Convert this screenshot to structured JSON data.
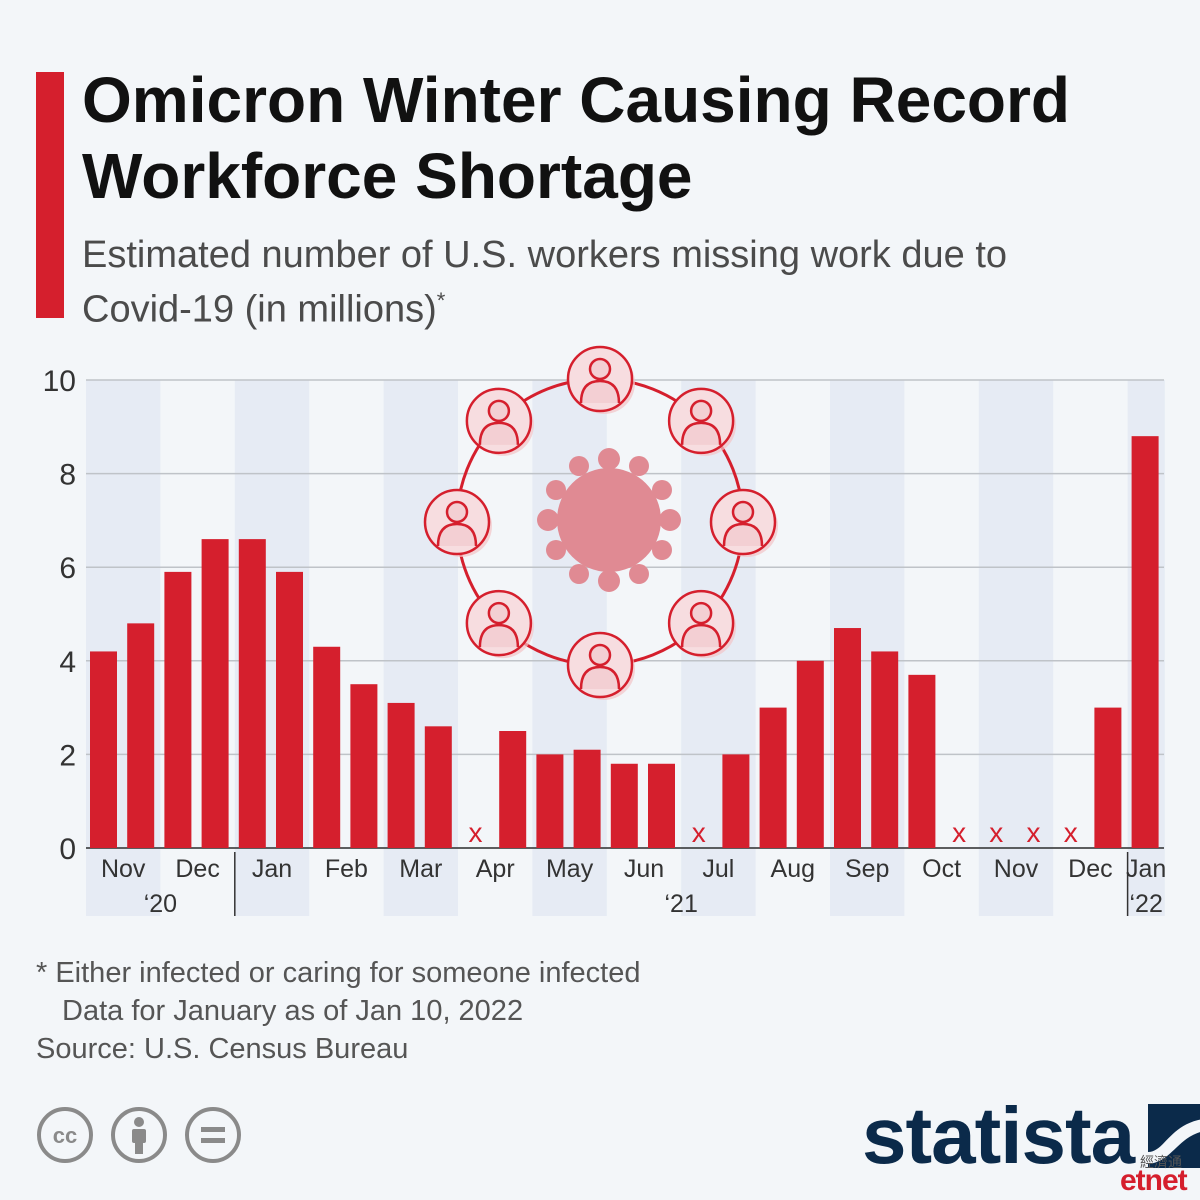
{
  "header": {
    "title": "Omicron Winter Causing Record Workforce Shortage",
    "subtitle": "Estimated number of U.S. workers missing work due to Covid-19 (in millions)",
    "subtitle_mark": "*"
  },
  "chart_data": {
    "type": "bar",
    "title": "Omicron Winter Causing Record Workforce Shortage",
    "subtitle": "Estimated number of U.S. workers missing work due to Covid-19 (in millions)*",
    "ylim": [
      0,
      10
    ],
    "yticks": [
      "0",
      "2",
      "4",
      "6",
      "8",
      "10"
    ],
    "grid": true,
    "missing_marker": "x",
    "values": [
      4.2,
      4.8,
      5.9,
      6.6,
      6.6,
      5.9,
      4.3,
      3.5,
      3.1,
      2.6,
      null,
      2.5,
      2.0,
      2.1,
      1.8,
      1.8,
      null,
      2.0,
      3.0,
      4.0,
      4.7,
      4.2,
      3.7,
      null,
      null,
      null,
      null,
      3.0,
      8.8
    ],
    "month_labels": [
      "Nov",
      "Dec",
      "Jan",
      "Feb",
      "Mar",
      "Apr",
      "May",
      "Jun",
      "Jul",
      "Aug",
      "Sep",
      "Oct",
      "Nov",
      "Dec",
      "Jan"
    ],
    "month_bars": [
      2,
      2,
      2,
      2,
      2,
      2,
      2,
      2,
      2,
      2,
      2,
      2,
      2,
      2,
      1
    ],
    "years": [
      {
        "label": "‘20",
        "months": 2
      },
      {
        "label": "‘21",
        "months": 12
      },
      {
        "label": "‘22",
        "months": 1
      }
    ],
    "colors": {
      "bar": "#d51f2d",
      "missing": "#d51f2d",
      "band": "#e6ebf4",
      "grid": "#bfc3c8"
    }
  },
  "notes": {
    "footnote_line1": "* Either infected or caring for someone infected",
    "footnote_line2": "Data for January as of Jan 10, 2022",
    "source": "Source: U.S. Census Bureau"
  },
  "license_icons": [
    "creative-commons-icon",
    "attribution-icon",
    "no-derivatives-icon"
  ],
  "brand": {
    "name": "statista",
    "color": "#0b2a4a"
  },
  "watermark": {
    "chinese": "經濟通",
    "name": "etnet"
  }
}
